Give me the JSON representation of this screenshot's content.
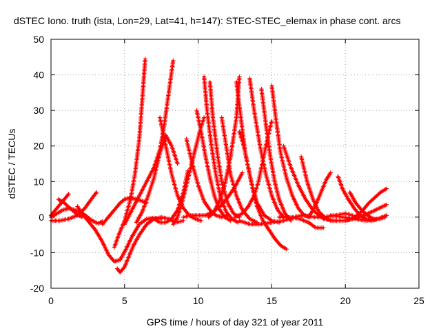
{
  "chart_data": {
    "type": "scatter",
    "title": "dSTEC Iono. truth (ista, Lon=29, Lat=41, h=147): STEC-STEC_elemax in phase cont. arcs",
    "xlabel": "GPS time / hours of day 321 of year 2011",
    "ylabel": "dSTEC  / TECUs",
    "xlim": [
      0,
      25
    ],
    "ylim": [
      -20,
      50
    ],
    "x_ticks": [
      "0",
      "5",
      "10",
      "15",
      "20",
      "25"
    ],
    "y_ticks": [
      "-20",
      "-10",
      "0",
      "10",
      "20",
      "30",
      "40",
      "50"
    ],
    "grid": true,
    "marker": "plus",
    "color": "#ff0000",
    "series": [
      {
        "x": [
          0.0,
          0.4,
          0.8,
          1.2,
          1.6,
          2.0,
          2.4,
          2.8,
          3.2,
          3.5
        ],
        "values": [
          0.0,
          1.0,
          2.0,
          2.5,
          2.0,
          1.5,
          0.3,
          -1.0,
          -1.8,
          -1.2
        ]
      },
      {
        "x": [
          0.0,
          0.3,
          0.6,
          0.9,
          1.2
        ],
        "values": [
          0.5,
          2.0,
          3.5,
          5.0,
          6.5
        ]
      },
      {
        "x": [
          0.5,
          0.9,
          1.3,
          1.7,
          2.1
        ],
        "values": [
          5.0,
          4.0,
          2.5,
          1.0,
          0.0
        ]
      },
      {
        "x": [
          0.0,
          0.6,
          1.2,
          1.8,
          2.3,
          2.7,
          3.1
        ],
        "values": [
          -1.0,
          -1.0,
          -0.5,
          0.5,
          2.5,
          4.8,
          7.0
        ]
      },
      {
        "x": [
          1.8,
          2.1,
          2.5,
          3.0,
          3.5,
          3.9,
          4.3,
          4.7,
          5.1,
          5.5,
          6.0,
          6.5,
          7.0,
          7.5
        ],
        "values": [
          3.0,
          1.0,
          -1.0,
          -3.5,
          -7.0,
          -10.5,
          -12.5,
          -12.0,
          -9.0,
          -5.5,
          -2.0,
          -0.5,
          -0.2,
          -0.5
        ]
      },
      {
        "x": [
          3.5,
          3.8,
          4.1,
          4.4,
          4.7,
          5.0,
          5.4,
          5.8,
          6.2,
          6.5
        ],
        "values": [
          -2.0,
          -0.5,
          1.0,
          2.5,
          4.0,
          5.0,
          5.5,
          5.0,
          4.5,
          4.0
        ]
      },
      {
        "x": [
          4.3,
          4.6,
          5.0,
          5.4,
          5.7,
          6.0,
          6.2,
          6.4
        ],
        "values": [
          -8.5,
          -5.0,
          -1.0,
          5.0,
          12.0,
          22.0,
          33.0,
          44.5
        ]
      },
      {
        "x": [
          4.5,
          4.7,
          5.0,
          5.3,
          5.6,
          6.0,
          6.5,
          7.0,
          7.5,
          8.0,
          8.5,
          9.0
        ],
        "values": [
          -14.5,
          -15.5,
          -14.0,
          -11.0,
          -8.0,
          -5.0,
          -2.0,
          -0.5,
          0.0,
          -0.5,
          -1.5,
          -1.0
        ]
      },
      {
        "x": [
          5.0,
          5.5,
          6.0,
          6.5,
          7.0,
          7.4,
          7.7,
          8.0,
          8.3
        ],
        "values": [
          -2.0,
          2.0,
          6.0,
          10.0,
          14.0,
          19.0,
          26.0,
          35.0,
          44.0
        ]
      },
      {
        "x": [
          5.8,
          6.2,
          6.6,
          7.0,
          7.4,
          7.8,
          8.2,
          8.6
        ],
        "values": [
          -1.5,
          1.5,
          6.0,
          11.0,
          18.0,
          23.0,
          20.0,
          15.0
        ]
      },
      {
        "x": [
          7.4,
          7.8,
          8.2,
          8.6,
          9.0,
          9.4,
          9.8,
          10.2
        ],
        "values": [
          28.0,
          20.0,
          12.0,
          6.0,
          2.5,
          0.5,
          -0.5,
          -1.0
        ]
      },
      {
        "x": [
          6.6,
          7.0,
          7.4,
          7.8,
          8.2,
          8.6,
          9.0,
          9.3
        ],
        "values": [
          -0.5,
          -0.5,
          -1.5,
          -1.5,
          -0.5,
          2.0,
          7.0,
          13.0
        ]
      },
      {
        "x": [
          8.3,
          8.6,
          8.9,
          9.2,
          9.5,
          9.8,
          10.1,
          10.4
        ],
        "values": [
          -2.0,
          0.0,
          4.0,
          9.0,
          14.0,
          19.0,
          24.0,
          28.0
        ]
      },
      {
        "x": [
          9.2,
          9.6,
          10.0,
          10.4,
          10.8,
          11.2,
          11.6,
          12.0
        ],
        "values": [
          22.0,
          15.0,
          9.0,
          4.5,
          2.0,
          0.5,
          0.0,
          0.5
        ]
      },
      {
        "x": [
          9.0,
          9.5,
          10.0,
          10.5,
          11.0,
          11.5,
          12.0,
          12.5,
          13.0
        ],
        "values": [
          0.0,
          0.5,
          0.5,
          0.5,
          1.5,
          3.0,
          5.5,
          8.5,
          12.5
        ]
      },
      {
        "x": [
          9.9,
          10.2,
          10.5,
          10.8,
          11.1,
          11.4,
          11.8,
          12.2
        ],
        "values": [
          30.0,
          24.0,
          17.0,
          11.0,
          6.0,
          2.5,
          0.0,
          -1.0
        ]
      },
      {
        "x": [
          10.4,
          10.6,
          10.9,
          11.2,
          11.5,
          11.9,
          12.3,
          12.7
        ],
        "values": [
          39.5,
          30.0,
          20.0,
          12.0,
          6.0,
          1.5,
          -0.5,
          -1.5
        ]
      },
      {
        "x": [
          10.8,
          11.0,
          11.3,
          11.6,
          12.0,
          12.4,
          12.8
        ],
        "values": [
          38.0,
          28.0,
          18.0,
          10.0,
          4.0,
          1.0,
          0.0
        ]
      },
      {
        "x": [
          10.7,
          11.0,
          11.4,
          11.8,
          12.2,
          12.6,
          12.8
        ],
        "values": [
          0.0,
          1.0,
          4.0,
          9.0,
          17.0,
          28.0,
          39.5
        ]
      },
      {
        "x": [
          11.6,
          11.9,
          12.2,
          12.6,
          13.0,
          13.5,
          14.0
        ],
        "values": [
          28.0,
          20.0,
          12.0,
          6.0,
          2.0,
          -0.5,
          -1.5
        ]
      },
      {
        "x": [
          12.6,
          12.9,
          13.2,
          13.6,
          14.0,
          14.5,
          15.0,
          15.5
        ],
        "values": [
          38.0,
          28.0,
          18.0,
          10.0,
          4.0,
          0.5,
          -1.0,
          -1.5
        ]
      },
      {
        "x": [
          12.8,
          13.1,
          13.4,
          13.7,
          14.0,
          14.4,
          14.8,
          15.2,
          15.6,
          16.0
        ],
        "values": [
          24.0,
          20.0,
          14.0,
          8.0,
          3.0,
          -1.0,
          -3.5,
          -6.0,
          -8.0,
          -9.0
        ]
      },
      {
        "x": [
          13.5,
          13.8,
          14.2,
          14.6,
          15.0,
          15.4,
          15.8
        ],
        "values": [
          39.0,
          30.0,
          20.0,
          12.0,
          6.0,
          2.0,
          0.0
        ]
      },
      {
        "x": [
          12.5,
          13.0,
          13.4,
          13.8,
          14.1,
          14.4,
          14.7,
          15.0
        ],
        "values": [
          0.0,
          1.0,
          3.0,
          6.0,
          10.0,
          16.0,
          22.0,
          27.0
        ]
      },
      {
        "x": [
          14.3,
          14.6,
          14.9,
          15.2,
          15.5,
          15.9,
          16.3
        ],
        "values": [
          36.0,
          26.0,
          17.0,
          10.0,
          5.0,
          1.0,
          -1.0
        ]
      },
      {
        "x": [
          15.0,
          15.3,
          15.6,
          16.0,
          16.4,
          16.8,
          17.2,
          17.6
        ],
        "values": [
          37.0,
          27.0,
          18.0,
          11.0,
          6.0,
          2.5,
          0.5,
          0.0
        ]
      },
      {
        "x": [
          12.8,
          13.5,
          14.2,
          15.0,
          15.8,
          16.5,
          17.2
        ],
        "values": [
          -1.0,
          -2.0,
          -2.0,
          -1.5,
          -1.0,
          0.0,
          0.5
        ]
      },
      {
        "x": [
          15.8,
          16.3,
          16.8,
          17.3,
          17.8,
          18.2,
          18.6
        ],
        "values": [
          20.0,
          14.0,
          9.0,
          5.0,
          2.0,
          0.5,
          -0.5
        ]
      },
      {
        "x": [
          17.0,
          17.4,
          17.8,
          18.2,
          18.6,
          19.0,
          19.4
        ],
        "values": [
          17.0,
          10.0,
          5.0,
          1.5,
          0.0,
          -1.0,
          -1.0
        ]
      },
      {
        "x": [
          15.5,
          16.2,
          16.9,
          17.5,
          18.0,
          18.5
        ],
        "values": [
          0.0,
          0.0,
          -0.5,
          -1.5,
          -3.0,
          -3.0
        ]
      },
      {
        "x": [
          16.5,
          17.2,
          17.9,
          18.6,
          19.3,
          20.0,
          20.5
        ],
        "values": [
          0.0,
          0.5,
          0.0,
          0.0,
          0.5,
          1.0,
          0.5
        ]
      },
      {
        "x": [
          17.5,
          17.8,
          18.1,
          18.4,
          18.7,
          19.0
        ],
        "values": [
          0.0,
          2.0,
          4.5,
          7.5,
          10.5,
          12.5
        ]
      },
      {
        "x": [
          19.5,
          19.8,
          20.2,
          20.6,
          21.0,
          21.4,
          21.8,
          22.2
        ],
        "values": [
          11.5,
          8.0,
          5.0,
          2.5,
          0.5,
          -0.5,
          -1.0,
          -0.5
        ]
      },
      {
        "x": [
          20.0,
          20.4,
          20.8,
          21.2,
          21.6,
          22.0,
          22.4,
          22.8
        ],
        "values": [
          -1.0,
          -0.5,
          0.5,
          2.0,
          4.0,
          5.5,
          7.0,
          8.0
        ]
      },
      {
        "x": [
          20.3,
          20.7,
          21.1,
          21.5,
          21.9,
          22.3,
          22.7
        ],
        "values": [
          7.0,
          4.0,
          2.0,
          0.5,
          -0.5,
          -0.5,
          0.0
        ]
      },
      {
        "x": [
          18.5,
          19.2,
          19.9,
          20.6,
          21.2,
          21.8,
          22.3,
          22.8
        ],
        "values": [
          -0.5,
          -1.0,
          -1.0,
          -0.5,
          0.5,
          1.5,
          2.5,
          3.5
        ]
      },
      {
        "x": [
          19.0,
          19.8,
          20.6,
          21.4,
          22.2,
          22.8
        ],
        "values": [
          0.5,
          0.0,
          -0.5,
          -1.0,
          -0.5,
          0.5
        ]
      }
    ]
  }
}
